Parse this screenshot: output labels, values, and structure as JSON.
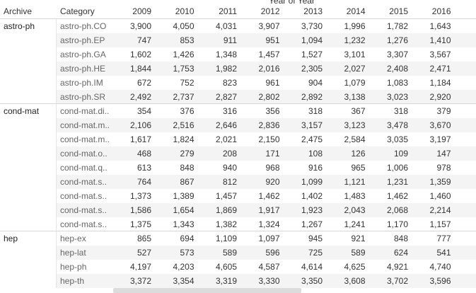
{
  "header": {
    "title": "Year of Year",
    "columns": [
      "Archive",
      "Category",
      "2009",
      "2010",
      "2011",
      "2012",
      "2013",
      "2014",
      "2015",
      "2016"
    ]
  },
  "groups": [
    {
      "archive": "astro-ph",
      "rows": [
        {
          "category": "astro-ph.CO",
          "values": [
            "3,900",
            "4,050",
            "4,031",
            "3,907",
            "3,730",
            "1,996",
            "1,782",
            "1,643"
          ]
        },
        {
          "category": "astro-ph.EP",
          "values": [
            "747",
            "853",
            "911",
            "951",
            "1,094",
            "1,232",
            "1,276",
            "1,410"
          ]
        },
        {
          "category": "astro-ph.GA",
          "values": [
            "1,602",
            "1,426",
            "1,348",
            "1,457",
            "1,527",
            "3,101",
            "3,307",
            "3,567"
          ]
        },
        {
          "category": "astro-ph.HE",
          "values": [
            "1,844",
            "1,753",
            "1,982",
            "2,016",
            "2,305",
            "2,027",
            "2,408",
            "2,471"
          ]
        },
        {
          "category": "astro-ph.IM",
          "values": [
            "672",
            "752",
            "823",
            "961",
            "904",
            "1,079",
            "1,083",
            "1,184"
          ]
        },
        {
          "category": "astro-ph.SR",
          "values": [
            "2,492",
            "2,737",
            "2,827",
            "2,802",
            "2,892",
            "3,138",
            "3,023",
            "2,920"
          ]
        }
      ]
    },
    {
      "archive": "cond-mat",
      "rows": [
        {
          "category": "cond-mat.di..",
          "values": [
            "354",
            "376",
            "316",
            "356",
            "318",
            "367",
            "318",
            "379"
          ]
        },
        {
          "category": "cond-mat.m..",
          "values": [
            "2,106",
            "2,516",
            "2,646",
            "2,836",
            "3,157",
            "3,123",
            "3,478",
            "3,670"
          ]
        },
        {
          "category": "cond-mat.m..",
          "values": [
            "1,617",
            "1,824",
            "2,021",
            "2,150",
            "2,475",
            "2,584",
            "3,035",
            "3,197"
          ]
        },
        {
          "category": "cond-mat.o..",
          "values": [
            "468",
            "279",
            "208",
            "171",
            "108",
            "126",
            "109",
            "147"
          ]
        },
        {
          "category": "cond-mat.q..",
          "values": [
            "613",
            "848",
            "940",
            "968",
            "916",
            "965",
            "1,006",
            "978"
          ]
        },
        {
          "category": "cond-mat.s..",
          "values": [
            "764",
            "867",
            "812",
            "920",
            "1,099",
            "1,121",
            "1,231",
            "1,359"
          ]
        },
        {
          "category": "cond-mat.s..",
          "values": [
            "1,373",
            "1,389",
            "1,457",
            "1,462",
            "1,402",
            "1,483",
            "1,462",
            "1,460"
          ]
        },
        {
          "category": "cond-mat.s..",
          "values": [
            "1,586",
            "1,654",
            "1,869",
            "1,917",
            "1,923",
            "2,043",
            "2,068",
            "2,214"
          ]
        },
        {
          "category": "cond-mat.s..",
          "values": [
            "1,375",
            "1,343",
            "1,382",
            "1,324",
            "1,267",
            "1,241",
            "1,170",
            "1,157"
          ]
        }
      ]
    },
    {
      "archive": "hep",
      "rows": [
        {
          "category": "hep-ex",
          "values": [
            "865",
            "694",
            "1,109",
            "1,097",
            "945",
            "921",
            "848",
            "777"
          ]
        },
        {
          "category": "hep-lat",
          "values": [
            "527",
            "573",
            "589",
            "596",
            "725",
            "589",
            "624",
            "541"
          ]
        },
        {
          "category": "hep-ph",
          "values": [
            "4,197",
            "4,203",
            "4,605",
            "4,587",
            "4,614",
            "4,625",
            "4,921",
            "4,740"
          ]
        },
        {
          "category": "hep-th",
          "values": [
            "3,372",
            "3,354",
            "3,319",
            "3,330",
            "3,350",
            "3,608",
            "3,702",
            "3,596"
          ]
        }
      ]
    }
  ]
}
